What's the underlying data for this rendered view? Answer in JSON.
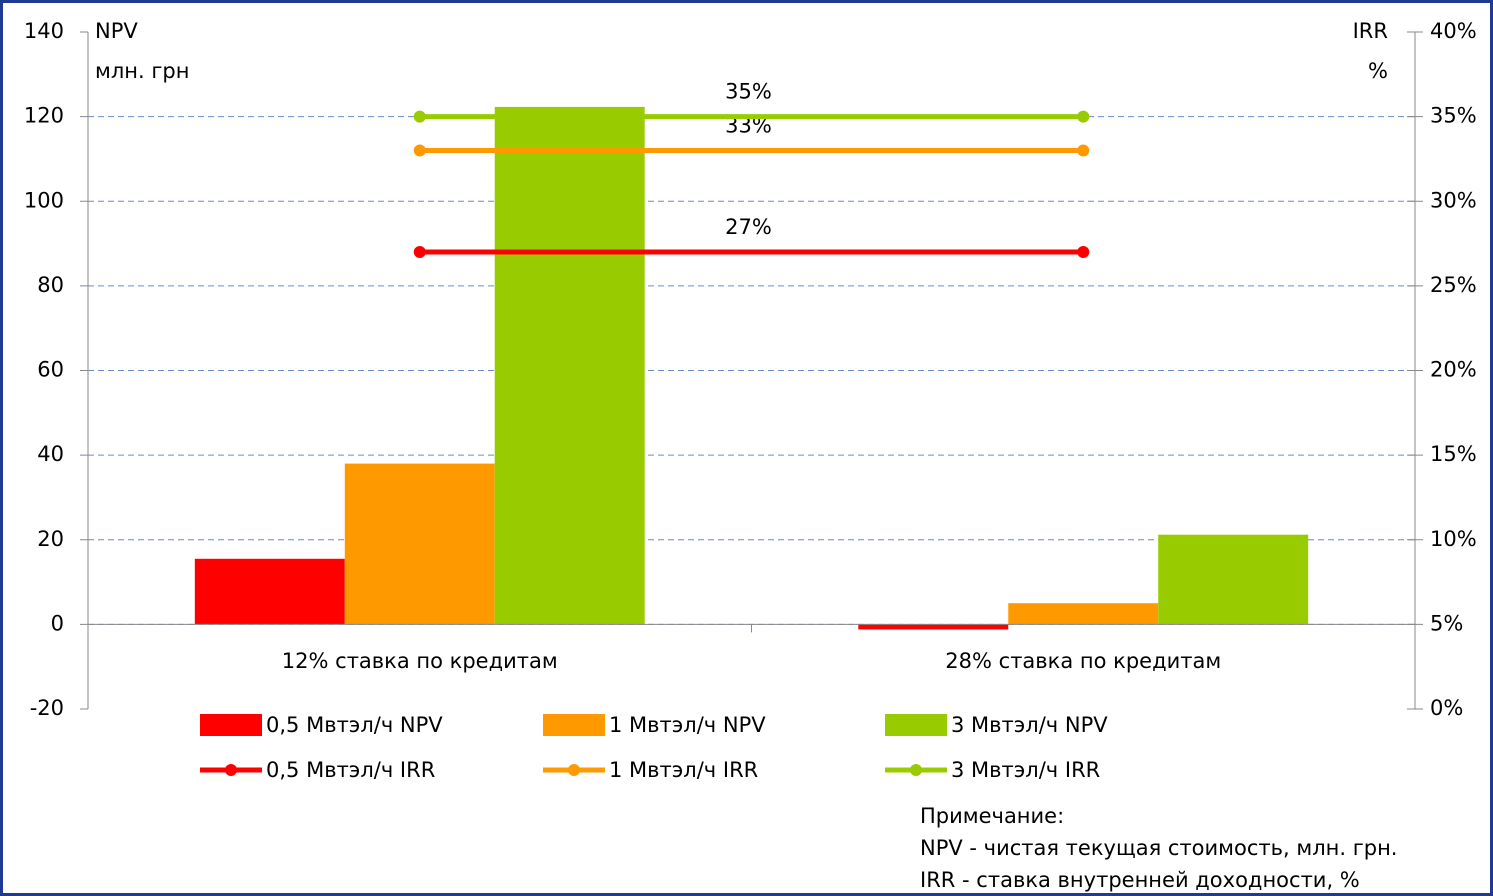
{
  "chart_data": {
    "type": "bar",
    "y_label": [
      "NPV",
      "млн. грн"
    ],
    "y2_label": [
      "IRR",
      "%"
    ],
    "categories": [
      "12% ставка по кредитам",
      "28% ставка по кредитам"
    ],
    "series": [
      {
        "name": "0,5 Мвтэл/ч NPV",
        "type": "bar",
        "color": "#ff0000",
        "values": [
          15.5,
          -1.2
        ]
      },
      {
        "name": "1 Мвтэл/ч NPV",
        "type": "bar",
        "color": "#ff9900",
        "values": [
          38,
          5
        ]
      },
      {
        "name": "3 Мвтэл/ч NPV",
        "type": "bar",
        "color": "#99cc00",
        "values": [
          122.3,
          21.2
        ]
      },
      {
        "name": "0,5 Мвтэл/ч IRR",
        "type": "line",
        "axis": "y2",
        "color": "#ff0000",
        "values": [
          27,
          27
        ],
        "value_labels": [
          "27%",
          null
        ]
      },
      {
        "name": "1 Мвтэл/ч IRR",
        "type": "line",
        "axis": "y2",
        "color": "#ff9900",
        "values": [
          33,
          33
        ],
        "value_labels": [
          "33%",
          null
        ]
      },
      {
        "name": "3 Мвтэл/ч IRR",
        "type": "line",
        "axis": "y2",
        "color": "#99cc00",
        "values": [
          35,
          35
        ],
        "value_labels": [
          "35%",
          null
        ]
      }
    ],
    "ylim": [
      -20,
      140
    ],
    "yticks": [
      -20,
      0,
      20,
      40,
      60,
      80,
      100,
      120,
      140
    ],
    "y2lim": [
      0,
      40
    ],
    "y2ticks": [
      {
        "value": 0,
        "label": "0%"
      },
      {
        "value": 5,
        "label": "5%"
      },
      {
        "value": 10,
        "label": "10%"
      },
      {
        "value": 15,
        "label": "15%"
      },
      {
        "value": 20,
        "label": "20%"
      },
      {
        "value": 25,
        "label": "25%"
      },
      {
        "value": 30,
        "label": "30%"
      },
      {
        "value": 35,
        "label": "35%"
      },
      {
        "value": 40,
        "label": "40%"
      }
    ],
    "grid": true,
    "note": [
      "Примечание:",
      "NPV - чистая текущая стоимость, млн. грн.",
      "IRR - ставка внутренней доходности, %"
    ]
  }
}
